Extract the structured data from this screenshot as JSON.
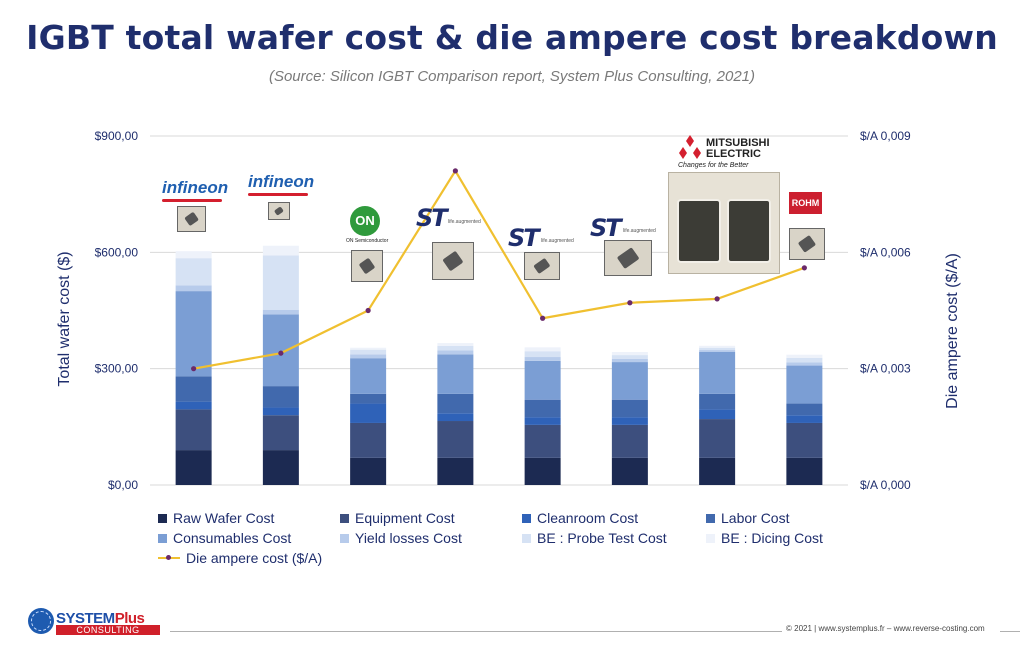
{
  "title": "IGBT total wafer cost & die ampere cost breakdown",
  "subtitle": "(Source: Silicon IGBT Comparison report, System Plus Consulting, 2021)",
  "chart_data": {
    "type": "bar",
    "stacked": true,
    "categories": [
      "",
      "",
      "",
      "",
      "",
      "",
      "",
      ""
    ],
    "ylabel_left": "Total wafer cost ($)",
    "ylabel_right": "Die ampere cost ($/A)",
    "ylim_left": [
      0,
      900
    ],
    "ylim_right": [
      0,
      0.009
    ],
    "yticks_left": [
      "$0,00",
      "$300,00",
      "$600,00",
      "$900,00"
    ],
    "yticks_right": [
      "$/A 0,000",
      "$/A 0,003",
      "$/A 0,006",
      "$/A 0,009"
    ],
    "grid": true,
    "legend_position": "bottom",
    "series": [
      {
        "name": "Raw Wafer Cost",
        "color": "#1c2a52",
        "values": [
          90,
          90,
          70,
          70,
          70,
          70,
          70,
          70
        ]
      },
      {
        "name": "Equipment Cost",
        "color": "#3d4f7e",
        "values": [
          105,
          90,
          90,
          95,
          85,
          85,
          100,
          90
        ]
      },
      {
        "name": "Cleanroom Cost",
        "color": "#2f62b8",
        "values": [
          20,
          20,
          50,
          20,
          20,
          20,
          25,
          20
        ]
      },
      {
        "name": "Labor Cost",
        "color": "#4169ad",
        "values": [
          65,
          55,
          25,
          50,
          45,
          45,
          40,
          30
        ]
      },
      {
        "name": "Consumables Cost",
        "color": "#7b9ed4",
        "values": [
          220,
          185,
          92,
          102,
          100,
          97,
          108,
          98
        ]
      },
      {
        "name": "Yield losses Cost",
        "color": "#b7cbeb",
        "values": [
          15,
          12,
          10,
          10,
          10,
          8,
          5,
          8
        ]
      },
      {
        "name": "BE : Probe Test Cost",
        "color": "#d6e2f4",
        "values": [
          70,
          140,
          12,
          12,
          15,
          10,
          6,
          12
        ]
      },
      {
        "name": "BE : Dicing Cost",
        "color": "#eef2fa",
        "values": [
          18,
          25,
          5,
          7,
          10,
          8,
          5,
          8
        ]
      }
    ],
    "line_series": {
      "name": "Die ampere cost ($/A)",
      "color": "#f0c030",
      "marker_color": "#6a2a6a",
      "axis": "right",
      "values": [
        0.003,
        0.0034,
        0.0045,
        0.0081,
        0.0043,
        0.0047,
        0.0048,
        0.0056
      ]
    }
  },
  "logos": {
    "infineon": "infineon",
    "on": "ON",
    "on_sub": "ON Semiconductor",
    "st_tag": "life.augmented",
    "mitsubishi_line1": "MITSUBISHI",
    "mitsubishi_line2": "ELECTRIC",
    "mitsubishi_tag": "Changes for the Better",
    "rohm": "ROHM"
  },
  "footer": {
    "company": "SYSTEM",
    "company_plus": "Plus",
    "consulting": "CONSULTING",
    "copyright": "© 2021 | www.systemplus.fr – www.reverse-costing.com"
  }
}
